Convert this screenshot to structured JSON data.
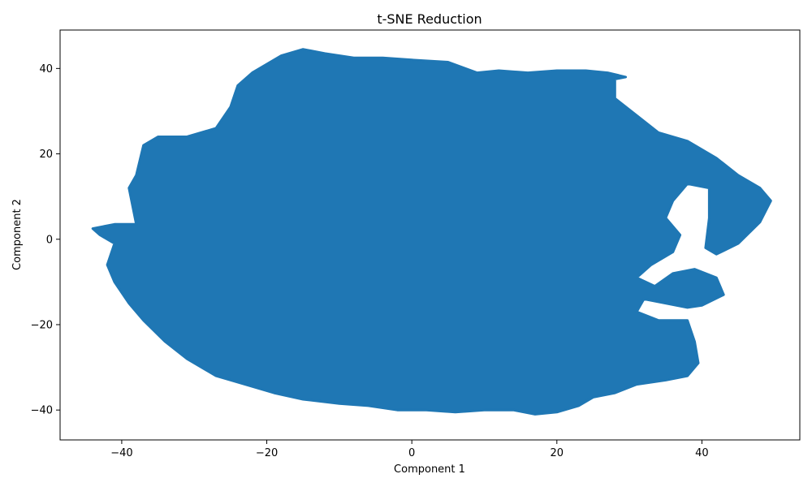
{
  "chart_data": {
    "type": "scatter",
    "title": "t-SNE Reduction",
    "xlabel": "Component 1",
    "ylabel": "Component 2",
    "xlim": [
      -48.5,
      53.5
    ],
    "ylim": [
      -47.0,
      49.0
    ],
    "xticks": [
      -40,
      -20,
      0,
      20,
      40
    ],
    "yticks": [
      -40,
      -20,
      0,
      20,
      40
    ],
    "xtick_labels": [
      "−40",
      "−20",
      "0",
      "20",
      "40"
    ],
    "ytick_labels": [
      "−40",
      "−20",
      "0",
      "20",
      "40"
    ],
    "grid": false,
    "point_color": "#1f77b4",
    "series": [
      {
        "main_cloud_outline": [
          [
            -44,
            2.5
          ],
          [
            -41,
            3.5
          ],
          [
            -38,
            3.5
          ],
          [
            -39,
            12
          ],
          [
            -38,
            15
          ],
          [
            -37,
            22
          ],
          [
            -35,
            24
          ],
          [
            -31,
            24
          ],
          [
            -27,
            26
          ],
          [
            -25,
            31
          ],
          [
            -24,
            36
          ],
          [
            -22,
            39
          ],
          [
            -18,
            43
          ],
          [
            -15,
            44.5
          ],
          [
            -12,
            43.5
          ],
          [
            -8,
            42.5
          ],
          [
            -4,
            42.5
          ],
          [
            0,
            42
          ],
          [
            5,
            41.5
          ],
          [
            9,
            39
          ],
          [
            12,
            39.5
          ],
          [
            16,
            39
          ],
          [
            20,
            39.5
          ],
          [
            24,
            39.5
          ],
          [
            27,
            39
          ],
          [
            29.5,
            38
          ],
          [
            28,
            37.5
          ],
          [
            28,
            33
          ],
          [
            31,
            29
          ],
          [
            34,
            25
          ],
          [
            38,
            23
          ],
          [
            42,
            19
          ],
          [
            45,
            15
          ],
          [
            48,
            12
          ],
          [
            49.5,
            9
          ],
          [
            48,
            4
          ],
          [
            45,
            -1
          ],
          [
            42,
            -3.5
          ],
          [
            40.5,
            -2
          ],
          [
            41,
            5
          ],
          [
            41,
            12
          ],
          [
            38,
            13
          ],
          [
            36,
            9
          ],
          [
            35,
            5
          ],
          [
            37,
            1
          ],
          [
            36,
            -3
          ],
          [
            33,
            -6
          ],
          [
            31,
            -9
          ],
          [
            33.5,
            -11
          ],
          [
            36,
            -8
          ],
          [
            39,
            -7
          ],
          [
            42,
            -9
          ],
          [
            43,
            -13
          ],
          [
            40,
            -15.5
          ],
          [
            38,
            -16
          ],
          [
            35,
            -15
          ],
          [
            32,
            -14
          ],
          [
            31,
            -17
          ],
          [
            34,
            -19
          ],
          [
            38,
            -19
          ],
          [
            39,
            -24
          ],
          [
            39.5,
            -29
          ],
          [
            38,
            -32
          ],
          [
            35,
            -33
          ],
          [
            31,
            -34
          ],
          [
            28,
            -36
          ],
          [
            25,
            -37
          ],
          [
            23,
            -39
          ],
          [
            20,
            -40.5
          ],
          [
            17,
            -41
          ],
          [
            14,
            -40
          ],
          [
            10,
            -40
          ],
          [
            6,
            -40.5
          ],
          [
            2,
            -40
          ],
          [
            -2,
            -40
          ],
          [
            -6,
            -39
          ],
          [
            -10,
            -38.5
          ],
          [
            -15,
            -37.5
          ],
          [
            -19,
            -36
          ],
          [
            -23,
            -34
          ],
          [
            -27,
            -32
          ],
          [
            -31,
            -28
          ],
          [
            -34,
            -24
          ],
          [
            -37,
            -19
          ],
          [
            -39,
            -15
          ],
          [
            -41,
            -10
          ],
          [
            -42,
            -6
          ],
          [
            -41,
            -1
          ],
          [
            -43,
            1
          ]
        ]
      }
    ]
  }
}
